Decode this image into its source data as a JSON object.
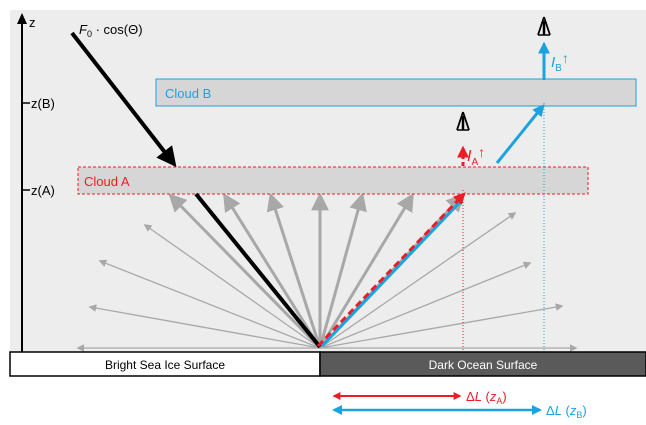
{
  "axis": {
    "label": "z",
    "tick_b": "z(B)",
    "tick_a": "z(A)"
  },
  "incident": {
    "label_symbol": "F",
    "label_subscript": "0",
    "label_rest": " · cos(Θ)"
  },
  "clouds": {
    "a": {
      "label": "Cloud A",
      "color": "#ee1c24"
    },
    "b": {
      "label": "Cloud B",
      "color": "#1aa3e0"
    }
  },
  "radiances": {
    "a": {
      "symbol": "I",
      "subscript": "A",
      "arrow": "↑",
      "color": "#ee1c24"
    },
    "b": {
      "symbol": "I",
      "subscript": "B",
      "arrow": "↑",
      "color": "#1aa3e0"
    }
  },
  "surfaces": {
    "ice": "Bright Sea Ice Surface",
    "ocean": "Dark Ocean Surface"
  },
  "offsets": {
    "a": {
      "prefix": "Δ",
      "symbol": "L",
      "open": " (",
      "var": "z",
      "subscript": "A",
      "close": ")",
      "color": "#ee1c24"
    },
    "b": {
      "prefix": "Δ",
      "symbol": "L",
      "open": " (",
      "var": "z",
      "subscript": "B",
      "close": ")",
      "color": "#1aa3e0"
    }
  },
  "colors": {
    "background": "#ededed",
    "cloud_fill": "#d6d6d6",
    "scatter": "#a8a8a8",
    "ocean": "#5a5a5a"
  }
}
